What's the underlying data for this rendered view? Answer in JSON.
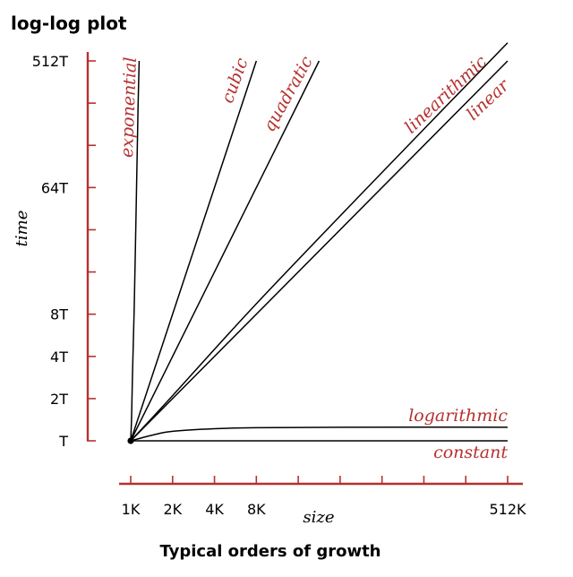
{
  "chart_data": {
    "type": "line",
    "title": "log-log plot",
    "caption": "Typical orders of growth",
    "xlabel": "size",
    "ylabel": "time",
    "x_scale": "log2",
    "y_scale": "log2",
    "x_ticks": [
      {
        "value": 1,
        "label": "1K"
      },
      {
        "value": 2,
        "label": "2K"
      },
      {
        "value": 4,
        "label": "4K"
      },
      {
        "value": 8,
        "label": "8K"
      },
      {
        "value": 16,
        "label": ""
      },
      {
        "value": 32,
        "label": ""
      },
      {
        "value": 64,
        "label": ""
      },
      {
        "value": 128,
        "label": ""
      },
      {
        "value": 256,
        "label": ""
      },
      {
        "value": 512,
        "label": "512K"
      }
    ],
    "y_ticks": [
      {
        "value": 1,
        "label": "T"
      },
      {
        "value": 2,
        "label": "2T"
      },
      {
        "value": 4,
        "label": "4T"
      },
      {
        "value": 8,
        "label": "8T"
      },
      {
        "value": 16,
        "label": ""
      },
      {
        "value": 32,
        "label": ""
      },
      {
        "value": 64,
        "label": "64T"
      },
      {
        "value": 128,
        "label": ""
      },
      {
        "value": 256,
        "label": ""
      },
      {
        "value": 512,
        "label": "512T"
      }
    ],
    "series": [
      {
        "name": "constant",
        "x": [
          1,
          512
        ],
        "y": [
          1,
          1
        ]
      },
      {
        "name": "logarithmic",
        "x": [
          1,
          1.5,
          2,
          4,
          8,
          32,
          512
        ],
        "y": [
          1,
          1.11,
          1.17,
          1.22,
          1.24,
          1.25,
          1.25
        ]
      },
      {
        "name": "linear",
        "x": [
          1,
          512
        ],
        "y": [
          1,
          512
        ]
      },
      {
        "name": "linearithmic",
        "x": [
          1,
          2,
          8,
          64,
          512
        ],
        "y": [
          1,
          2.1,
          9.5,
          82,
          690
        ]
      },
      {
        "name": "quadratic",
        "x": [
          1,
          2,
          4,
          8,
          16,
          22.6
        ],
        "y": [
          1,
          4,
          16,
          64,
          256,
          512
        ]
      },
      {
        "name": "cubic",
        "x": [
          1,
          2,
          4,
          8
        ],
        "y": [
          1,
          8,
          64,
          512
        ]
      },
      {
        "name": "exponential",
        "x": [
          1,
          1.015,
          1.03,
          1.06,
          1.1,
          1.13,
          1.15
        ],
        "y": [
          1,
          1.5,
          3,
          9,
          60,
          250,
          512
        ]
      }
    ],
    "xlim": [
      1,
      512
    ],
    "ylim": [
      1,
      512
    ],
    "grid": false,
    "legend": "none"
  },
  "colors": {
    "accent": "#b5312f",
    "line": "#000000"
  }
}
